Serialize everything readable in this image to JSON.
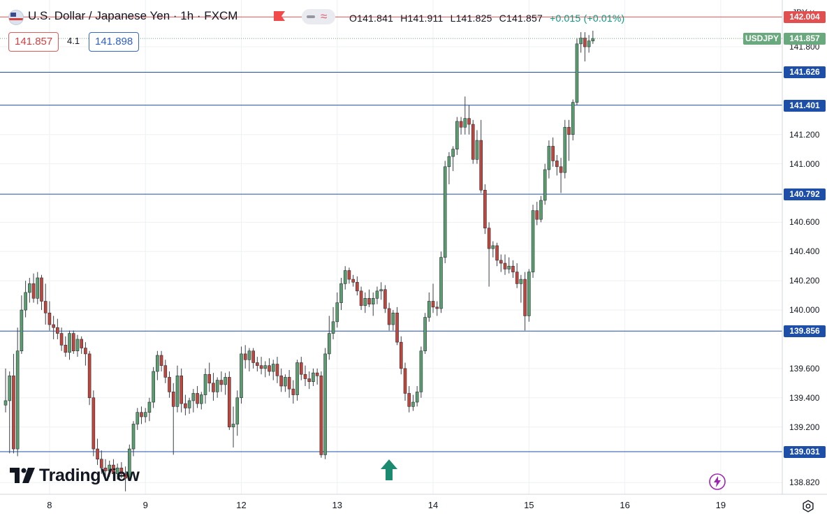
{
  "header": {
    "title": "U.S. Dollar / Japanese Yen · 1h · FXCM",
    "ohlc": {
      "open": "O141.841",
      "high": "H141.911",
      "low": "L141.825",
      "close": "C141.857",
      "change": "+0.015 (+0.01%)"
    },
    "bid": "141.857",
    "spread": "4.1",
    "ask": "141.898",
    "currency": "JPY"
  },
  "logo": "TradingView",
  "chart_data": {
    "type": "candlestick",
    "symbol_tag": "USDJPY",
    "last_price": "141.857",
    "ylim": [
      138.74,
      142.12
    ],
    "y_ticks": [
      "141.800",
      "141.200",
      "141.000",
      "140.600",
      "140.400",
      "140.200",
      "140.000",
      "139.600",
      "139.400",
      "139.200",
      "138.820"
    ],
    "x_ticks": [
      {
        "label": "8",
        "index": 11
      },
      {
        "label": "9",
        "index": 35
      },
      {
        "label": "12",
        "index": 59
      },
      {
        "label": "13",
        "index": 83
      },
      {
        "label": "14",
        "index": 107
      },
      {
        "label": "15",
        "index": 131
      },
      {
        "label": "16",
        "index": 155
      },
      {
        "label": "19",
        "index": 179
      }
    ],
    "levels": [
      {
        "value": 142.004,
        "label": "142.004",
        "color": "#e05050"
      },
      {
        "value": 141.626,
        "label": "141.626",
        "color": "#1e4fa8"
      },
      {
        "value": 141.401,
        "label": "141.401",
        "color": "#1e4fa8"
      },
      {
        "value": 140.792,
        "label": "140.792",
        "color": "#1e4fa8"
      },
      {
        "value": 139.856,
        "label": "139.856",
        "color": "#1e4fa8"
      },
      {
        "value": 139.031,
        "label": "139.031",
        "color": "#1e4fa8"
      }
    ],
    "signal": {
      "type": "up-arrow",
      "index": 96,
      "color": "#1a8b6e"
    },
    "colors": {
      "up": "#5a9e6f",
      "down": "#c0463d"
    },
    "ohlc": [
      [
        139.35,
        139.6,
        139.3,
        139.38
      ],
      [
        139.38,
        139.58,
        139.02,
        139.55
      ],
      [
        139.55,
        139.7,
        139.02,
        139.05
      ],
      [
        139.05,
        139.88,
        139.0,
        139.72
      ],
      [
        139.72,
        140.1,
        139.7,
        140.0
      ],
      [
        140.0,
        140.2,
        139.95,
        140.12
      ],
      [
        140.12,
        140.22,
        140.05,
        140.18
      ],
      [
        140.18,
        140.25,
        140.05,
        140.08
      ],
      [
        140.08,
        140.26,
        140.04,
        140.22
      ],
      [
        140.22,
        140.24,
        140.0,
        140.06
      ],
      [
        140.06,
        140.18,
        139.9,
        139.98
      ],
      [
        139.98,
        140.06,
        139.86,
        139.9
      ],
      [
        139.9,
        139.96,
        139.8,
        139.88
      ],
      [
        139.88,
        139.94,
        139.8,
        139.84
      ],
      [
        139.84,
        139.88,
        139.72,
        139.76
      ],
      [
        139.76,
        139.82,
        139.68,
        139.71
      ],
      [
        139.71,
        139.86,
        139.66,
        139.84
      ],
      [
        139.84,
        139.86,
        139.7,
        139.72
      ],
      [
        139.72,
        139.83,
        139.68,
        139.8
      ],
      [
        139.8,
        139.82,
        139.7,
        139.74
      ],
      [
        139.74,
        139.78,
        139.62,
        139.7
      ],
      [
        139.7,
        139.72,
        139.35,
        139.4
      ],
      [
        139.4,
        139.45,
        139.0,
        139.05
      ],
      [
        139.05,
        139.12,
        138.94,
        138.98
      ],
      [
        138.98,
        139.04,
        138.88,
        138.92
      ],
      [
        138.92,
        138.98,
        138.84,
        138.9
      ],
      [
        138.9,
        138.97,
        138.86,
        138.94
      ],
      [
        138.94,
        138.98,
        138.85,
        138.88
      ],
      [
        138.88,
        138.95,
        138.84,
        138.92
      ],
      [
        138.92,
        138.96,
        138.85,
        138.88
      ],
      [
        138.88,
        138.93,
        138.76,
        138.85
      ],
      [
        138.85,
        139.08,
        138.84,
        139.05
      ],
      [
        139.05,
        139.24,
        139.0,
        139.22
      ],
      [
        139.22,
        139.33,
        139.18,
        139.3
      ],
      [
        139.3,
        139.34,
        139.22,
        139.27
      ],
      [
        139.27,
        139.33,
        139.23,
        139.3
      ],
      [
        139.3,
        139.4,
        139.24,
        139.37
      ],
      [
        139.37,
        139.61,
        139.33,
        139.58
      ],
      [
        139.58,
        139.72,
        139.52,
        139.69
      ],
      [
        139.69,
        139.72,
        139.58,
        139.62
      ],
      [
        139.62,
        139.66,
        139.5,
        139.54
      ],
      [
        139.54,
        139.58,
        139.4,
        139.44
      ],
      [
        139.44,
        139.5,
        139.01,
        139.34
      ],
      [
        139.34,
        139.62,
        139.3,
        139.55
      ],
      [
        139.55,
        139.6,
        139.3,
        139.36
      ],
      [
        139.36,
        139.42,
        139.28,
        139.33
      ],
      [
        139.33,
        139.4,
        139.29,
        139.38
      ],
      [
        139.38,
        139.46,
        139.3,
        139.43
      ],
      [
        139.43,
        139.48,
        139.33,
        139.36
      ],
      [
        139.36,
        139.44,
        139.32,
        139.42
      ],
      [
        139.42,
        139.6,
        139.36,
        139.56
      ],
      [
        139.56,
        139.64,
        139.44,
        139.5
      ],
      [
        139.5,
        139.57,
        139.38,
        139.44
      ],
      [
        139.44,
        139.54,
        139.4,
        139.52
      ],
      [
        139.52,
        139.58,
        139.44,
        139.49
      ],
      [
        139.49,
        139.57,
        139.42,
        139.54
      ],
      [
        139.54,
        139.58,
        139.18,
        139.2
      ],
      [
        139.2,
        139.34,
        139.06,
        139.22
      ],
      [
        139.22,
        139.45,
        139.14,
        139.4
      ],
      [
        139.4,
        139.75,
        139.36,
        139.7
      ],
      [
        139.7,
        139.76,
        139.6,
        139.66
      ],
      [
        139.66,
        139.74,
        139.58,
        139.72
      ],
      [
        139.72,
        139.74,
        139.6,
        139.64
      ],
      [
        139.64,
        139.68,
        139.58,
        139.62
      ],
      [
        139.62,
        139.68,
        139.56,
        139.6
      ],
      [
        139.6,
        139.65,
        139.54,
        139.62
      ],
      [
        139.62,
        139.67,
        139.55,
        139.58
      ],
      [
        139.58,
        139.66,
        139.52,
        139.63
      ],
      [
        139.63,
        139.68,
        139.5,
        139.55
      ],
      [
        139.55,
        139.6,
        139.44,
        139.48
      ],
      [
        139.48,
        139.56,
        139.44,
        139.54
      ],
      [
        139.54,
        139.59,
        139.4,
        139.46
      ],
      [
        139.46,
        139.52,
        139.36,
        139.42
      ],
      [
        139.42,
        139.66,
        139.38,
        139.64
      ],
      [
        139.64,
        139.68,
        139.52,
        139.56
      ],
      [
        139.56,
        139.62,
        139.48,
        139.53
      ],
      [
        139.53,
        139.58,
        139.46,
        139.51
      ],
      [
        139.51,
        139.6,
        139.48,
        139.57
      ],
      [
        139.57,
        139.6,
        139.49,
        139.55
      ],
      [
        139.55,
        139.58,
        138.99,
        139.01
      ],
      [
        139.01,
        139.74,
        138.98,
        139.7
      ],
      [
        139.7,
        139.96,
        139.66,
        139.84
      ],
      [
        139.84,
        140.02,
        139.8,
        139.92
      ],
      [
        139.92,
        140.12,
        139.88,
        140.05
      ],
      [
        140.05,
        140.22,
        140.0,
        140.18
      ],
      [
        140.18,
        140.3,
        140.14,
        140.27
      ],
      [
        140.27,
        140.29,
        140.18,
        140.21
      ],
      [
        140.21,
        140.24,
        140.16,
        140.19
      ],
      [
        140.19,
        140.23,
        140.1,
        140.13
      ],
      [
        140.13,
        140.16,
        140.0,
        140.03
      ],
      [
        140.03,
        140.12,
        139.98,
        140.08
      ],
      [
        140.08,
        140.14,
        140.02,
        140.04
      ],
      [
        140.04,
        140.12,
        139.96,
        140.08
      ],
      [
        140.08,
        140.16,
        140.04,
        140.13
      ],
      [
        140.13,
        140.19,
        140.07,
        140.14
      ],
      [
        140.14,
        140.17,
        139.98,
        140.01
      ],
      [
        140.01,
        140.05,
        139.86,
        139.9
      ],
      [
        139.9,
        140.0,
        139.86,
        139.98
      ],
      [
        139.98,
        140.02,
        139.76,
        139.78
      ],
      [
        139.78,
        139.82,
        139.56,
        139.6
      ],
      [
        139.6,
        139.64,
        139.38,
        139.43
      ],
      [
        139.43,
        139.48,
        139.3,
        139.34
      ],
      [
        139.34,
        139.42,
        139.31,
        139.37
      ],
      [
        139.37,
        139.48,
        139.34,
        139.44
      ],
      [
        139.44,
        139.75,
        139.4,
        139.72
      ],
      [
        139.72,
        139.98,
        139.7,
        139.95
      ],
      [
        139.95,
        140.12,
        139.92,
        140.06
      ],
      [
        140.06,
        140.18,
        139.98,
        140.02
      ],
      [
        140.02,
        140.06,
        139.96,
        140.01
      ],
      [
        140.01,
        140.4,
        139.98,
        140.36
      ],
      [
        140.36,
        141.02,
        140.32,
        140.98
      ],
      [
        140.98,
        141.08,
        140.86,
        141.05
      ],
      [
        141.05,
        141.12,
        140.95,
        141.1
      ],
      [
        141.1,
        141.32,
        141.06,
        141.29
      ],
      [
        141.29,
        141.32,
        141.2,
        141.25
      ],
      [
        141.25,
        141.46,
        141.2,
        141.31
      ],
      [
        141.31,
        141.4,
        141.2,
        141.27
      ],
      [
        141.27,
        141.3,
        141.0,
        141.03
      ],
      [
        141.03,
        141.23,
        141.0,
        141.16
      ],
      [
        141.16,
        141.3,
        140.8,
        140.82
      ],
      [
        140.82,
        140.86,
        140.52,
        140.56
      ],
      [
        140.56,
        140.6,
        140.16,
        140.42
      ],
      [
        140.42,
        140.47,
        140.36,
        140.44
      ],
      [
        140.44,
        140.46,
        140.3,
        140.34
      ],
      [
        140.34,
        140.38,
        140.26,
        140.32
      ],
      [
        140.32,
        140.38,
        140.24,
        140.28
      ],
      [
        140.28,
        140.36,
        140.25,
        140.3
      ],
      [
        140.3,
        140.34,
        140.22,
        140.26
      ],
      [
        140.26,
        140.32,
        140.15,
        140.18
      ],
      [
        140.18,
        140.24,
        140.05,
        140.21
      ],
      [
        140.21,
        140.26,
        139.86,
        139.96
      ],
      [
        139.96,
        140.28,
        139.92,
        140.26
      ],
      [
        140.26,
        140.72,
        140.22,
        140.68
      ],
      [
        140.68,
        140.74,
        140.58,
        140.62
      ],
      [
        140.62,
        140.78,
        140.6,
        140.75
      ],
      [
        140.75,
        141.0,
        140.72,
        140.96
      ],
      [
        140.96,
        141.16,
        140.9,
        141.12
      ],
      [
        141.12,
        141.18,
        140.98,
        141.02
      ],
      [
        141.02,
        141.06,
        140.92,
        140.98
      ],
      [
        140.98,
        141.04,
        140.8,
        140.94
      ],
      [
        140.94,
        141.3,
        140.9,
        141.25
      ],
      [
        141.25,
        141.3,
        141.02,
        141.2
      ],
      [
        141.2,
        141.44,
        141.16,
        141.42
      ],
      [
        141.42,
        141.86,
        141.4,
        141.82
      ],
      [
        141.82,
        141.9,
        141.76,
        141.86
      ],
      [
        141.86,
        141.9,
        141.7,
        141.8
      ],
      [
        141.8,
        141.88,
        141.76,
        141.84
      ],
      [
        141.84,
        141.91,
        141.82,
        141.857
      ]
    ]
  }
}
